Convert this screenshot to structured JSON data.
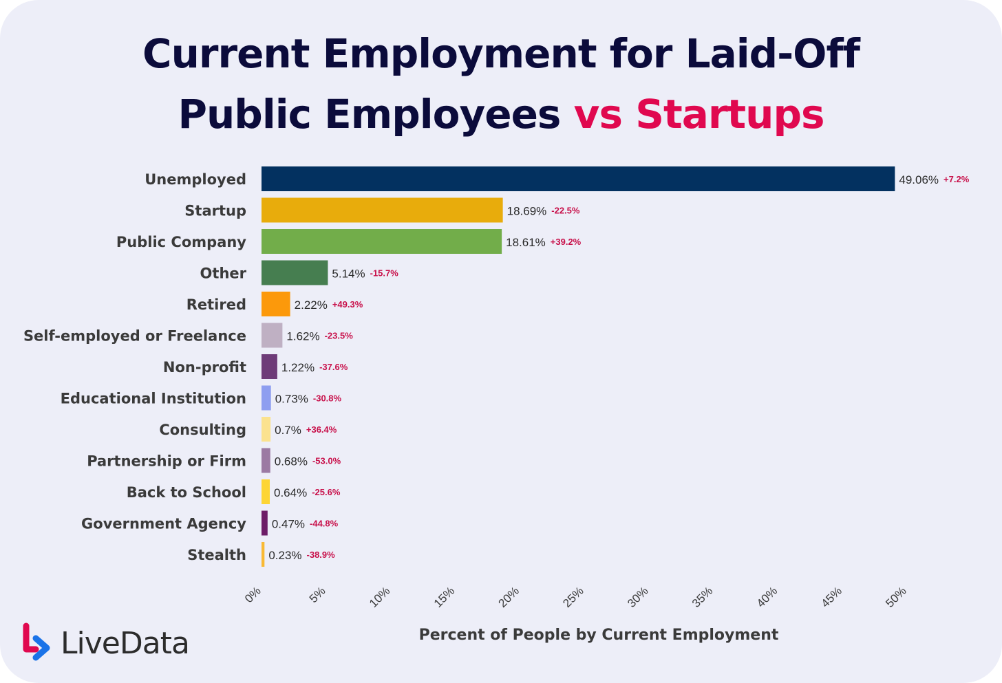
{
  "title": {
    "line1": "Current Employment for Laid-Off",
    "line2_main": "Public Employees",
    "line2_accent": "vs Startups"
  },
  "logo": {
    "text": "LiveData",
    "icon": "livedata-logo-icon"
  },
  "colors": {
    "title": "#0b0b3b",
    "accent": "#e0084f",
    "change_label": "#c8104a",
    "background": "#edeef8"
  },
  "chart_data": {
    "type": "bar",
    "orientation": "horizontal",
    "xlabel": "Percent of People by Current Employment",
    "xlim": [
      0,
      50
    ],
    "xticks": [
      "0%",
      "5%",
      "10%",
      "15%",
      "20%",
      "25%",
      "30%",
      "35%",
      "40%",
      "45%",
      "50%"
    ],
    "grid": false,
    "categories": [
      "Unemployed",
      "Startup",
      "Public Company",
      "Other",
      "Retired",
      "Self-employed or Freelance",
      "Non-profit",
      "Educational Institution",
      "Consulting",
      "Partnership or Firm",
      "Back to School",
      "Government Agency",
      "Stealth"
    ],
    "values": [
      49.06,
      18.69,
      18.61,
      5.14,
      2.22,
      1.62,
      1.22,
      0.73,
      0.7,
      0.68,
      0.64,
      0.47,
      0.23
    ],
    "value_labels": [
      "49.06%",
      "18.69%",
      "18.61%",
      "5.14%",
      "2.22%",
      "1.62%",
      "1.22%",
      "0.73%",
      "0.7%",
      "0.68%",
      "0.64%",
      "0.47%",
      "0.23%"
    ],
    "change_labels": [
      "+7.2%",
      "-22.5%",
      "+39.2%",
      "-15.7%",
      "+49.3%",
      "-23.5%",
      "-37.6%",
      "-30.8%",
      "+36.4%",
      "-53.0%",
      "-25.6%",
      "-44.8%",
      "-38.9%"
    ],
    "bar_colors": [
      "#033160",
      "#e8ac0c",
      "#72ad4a",
      "#467e50",
      "#fc990b",
      "#bfb0c3",
      "#6e3b78",
      "#8e9ef0",
      "#fbe28f",
      "#9c7aa3",
      "#fdd535",
      "#6d1c67",
      "#f9b934"
    ]
  }
}
